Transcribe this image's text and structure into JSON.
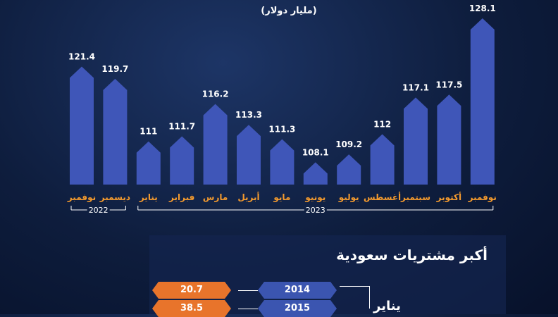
{
  "unit": "(مليار دولار)",
  "chart_data": {
    "type": "bar",
    "categories": [
      "نوفمبر",
      "ديسمبر",
      "يناير",
      "فبراير",
      "مارس",
      "أبريل",
      "مايو",
      "يونيو",
      "يوليو",
      "أغسطس",
      "سبتمبر",
      "أكتوبر",
      "نوفمبر"
    ],
    "values": [
      121.4,
      119.7,
      111,
      111.7,
      116.2,
      113.3,
      111.3,
      108.1,
      109.2,
      112,
      117.1,
      117.5,
      128.1
    ],
    "value_labels": [
      "121.4",
      "119.7",
      "111",
      "111.7",
      "116.2",
      "113.3",
      "111.3",
      "108.1",
      "109.2",
      "112",
      "117.1",
      "117.5",
      "128.1"
    ],
    "year_groups": [
      {
        "label": "2022",
        "from": 0,
        "to": 1
      },
      {
        "label": "2023",
        "from": 2,
        "to": 12
      }
    ],
    "colors": {
      "bar": "#3f56b8",
      "bar_top": "#5570d6",
      "category": "#f39a2e",
      "value": "#ffffff",
      "bracket": "#ffffff"
    }
  },
  "panel": {
    "title": "أكبر مشتريات سعودية",
    "rows": [
      {
        "year": "2014",
        "value": "20.7"
      },
      {
        "year": "2015",
        "value": "38.5"
      }
    ],
    "month": "يناير"
  }
}
